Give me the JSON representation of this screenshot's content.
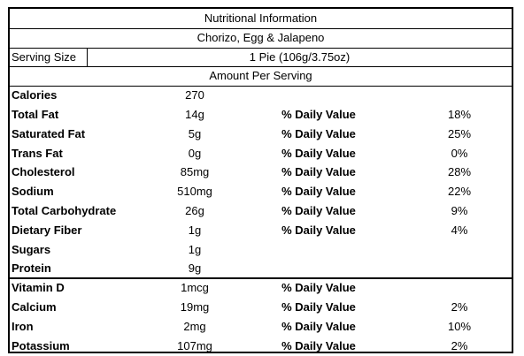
{
  "header": {
    "title": "Nutritional Information",
    "subtitle": "Chorizo, Egg & Jalapeno"
  },
  "serving": {
    "label": "Serving Size",
    "value": "1 Pie (106g/3.75oz)"
  },
  "amount_header": "Amount Per Serving",
  "nutrients": [
    {
      "name": "Calories",
      "amount": "270"
    },
    {
      "name": "Total Fat",
      "amount": "14g",
      "dv_label": "% Daily Value",
      "dv": "18%"
    },
    {
      "name": "Saturated Fat",
      "amount": "5g",
      "dv_label": "% Daily Value",
      "dv": "25%"
    },
    {
      "name": "Trans Fat",
      "amount": "0g",
      "dv_label": "% Daily Value",
      "dv": "0%"
    },
    {
      "name": "Cholesterol",
      "amount": "85mg",
      "dv_label": "% Daily Value",
      "dv": "28%"
    },
    {
      "name": "Sodium",
      "amount": "510mg",
      "dv_label": "% Daily Value",
      "dv": "22%"
    },
    {
      "name": "Total Carbohydrate",
      "amount": "26g",
      "dv_label": "% Daily Value",
      "dv": "9%"
    },
    {
      "name": "Dietary Fiber",
      "amount": "1g",
      "dv_label": "% Daily Value",
      "dv": "4%"
    },
    {
      "name": "Sugars",
      "amount": "1g"
    },
    {
      "name": "Protein",
      "amount": "9g"
    }
  ],
  "vitamins": [
    {
      "name": "Vitamin D",
      "amount": "1mcg",
      "dv_label": "% Daily Value"
    },
    {
      "name": "Calcium",
      "amount": "19mg",
      "dv_label": "% Daily Value",
      "dv": "2%"
    },
    {
      "name": "Iron",
      "amount": "2mg",
      "dv_label": "% Daily Value",
      "dv": "10%"
    },
    {
      "name": "Potassium",
      "amount": "107mg",
      "dv_label": "% Daily Value",
      "dv": "2%"
    }
  ]
}
